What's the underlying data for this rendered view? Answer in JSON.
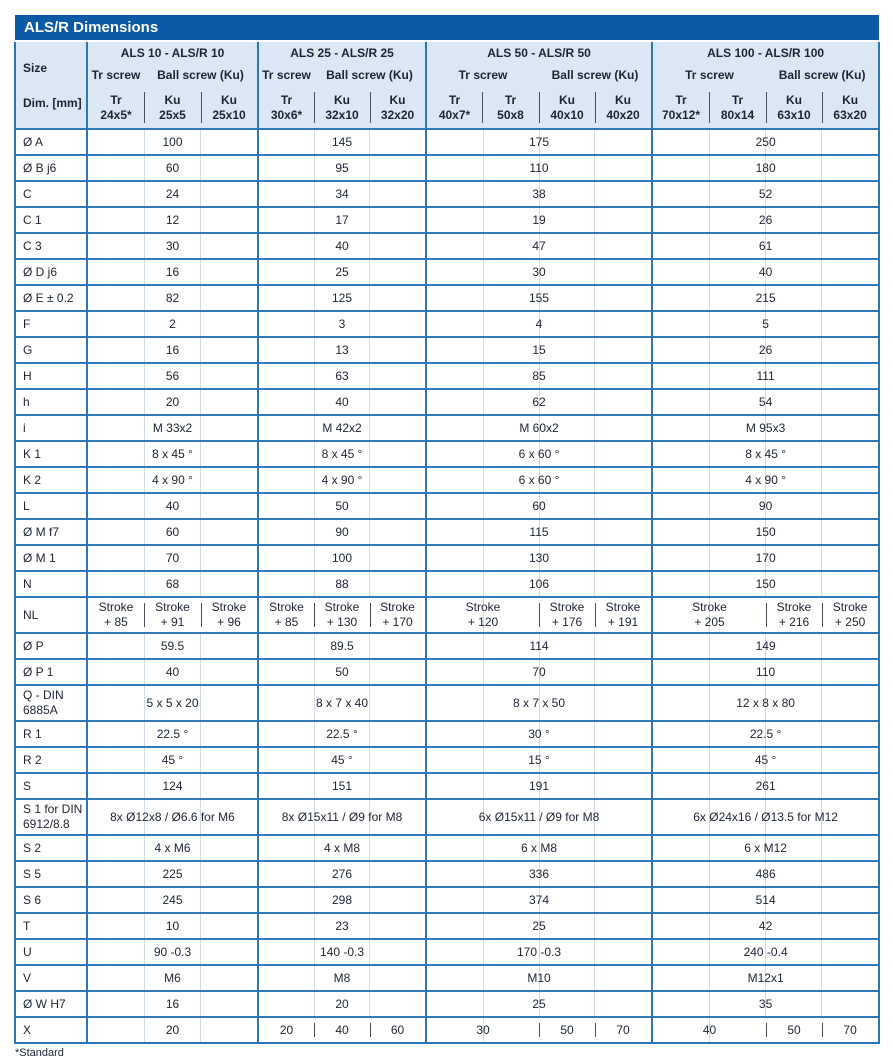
{
  "title": "ALS/R Dimensions",
  "footnote": "*Standard",
  "colors": {
    "title_bar": "#0a5aa5",
    "header_bg": "#dbe7f4",
    "grid_blue": "#2e75b5",
    "row_line": "#3279bd",
    "sub_separator": "#474d59",
    "span_line": "#cfdbe9",
    "text": "#1c2433"
  },
  "header": {
    "size_label": "Size",
    "dim_label": "Dim. [mm]",
    "groups": [
      {
        "name": "ALS 10 - ALS/R 10",
        "tr_label": "Tr screw",
        "ball_label": "Ball screw (Ku)",
        "tr_span": 1,
        "cols": [
          "Tr\n24x5*",
          "Ku\n25x5",
          "Ku\n25x10"
        ]
      },
      {
        "name": "ALS 25 - ALS/R 25",
        "tr_label": "Tr screw",
        "ball_label": "Ball screw (Ku)",
        "tr_span": 1,
        "cols": [
          "Tr\n30x6*",
          "Ku\n32x10",
          "Ku\n32x20"
        ]
      },
      {
        "name": "ALS 50 - ALS/R 50",
        "tr_label": "Tr screw",
        "ball_label": "Ball screw (Ku)",
        "tr_span": 2,
        "cols": [
          "Tr\n40x7*",
          "Tr\n50x8",
          "Ku\n40x10",
          "Ku\n40x20"
        ]
      },
      {
        "name": "ALS 100 - ALS/R 100",
        "tr_label": "Tr screw",
        "ball_label": "Ball screw (Ku)",
        "tr_span": 2,
        "cols": [
          "Tr\n70x12*",
          "Tr\n80x14",
          "Ku\n63x10",
          "Ku\n63x20"
        ]
      }
    ]
  },
  "rows": [
    {
      "label": "Ø A",
      "cells": [
        [
          "100",
          3
        ],
        [
          "145",
          3
        ],
        [
          "175",
          4
        ],
        [
          "250",
          4
        ]
      ]
    },
    {
      "label": "Ø B j6",
      "cells": [
        [
          "60",
          3
        ],
        [
          "95",
          3
        ],
        [
          "110",
          4
        ],
        [
          "180",
          4
        ]
      ]
    },
    {
      "label": "C",
      "cells": [
        [
          "24",
          3
        ],
        [
          "34",
          3
        ],
        [
          "38",
          4
        ],
        [
          "52",
          4
        ]
      ]
    },
    {
      "label": "C 1",
      "cells": [
        [
          "12",
          3
        ],
        [
          "17",
          3
        ],
        [
          "19",
          4
        ],
        [
          "26",
          4
        ]
      ]
    },
    {
      "label": "C 3",
      "cells": [
        [
          "30",
          3
        ],
        [
          "40",
          3
        ],
        [
          "47",
          4
        ],
        [
          "61",
          4
        ]
      ]
    },
    {
      "label": "Ø D j6",
      "cells": [
        [
          "16",
          3
        ],
        [
          "25",
          3
        ],
        [
          "30",
          4
        ],
        [
          "40",
          4
        ]
      ]
    },
    {
      "label": "Ø E ± 0.2",
      "cells": [
        [
          "82",
          3
        ],
        [
          "125",
          3
        ],
        [
          "155",
          4
        ],
        [
          "215",
          4
        ]
      ]
    },
    {
      "label": "F",
      "cells": [
        [
          "2",
          3
        ],
        [
          "3",
          3
        ],
        [
          "4",
          4
        ],
        [
          "5",
          4
        ]
      ]
    },
    {
      "label": "G",
      "cells": [
        [
          "16",
          3
        ],
        [
          "13",
          3
        ],
        [
          "15",
          4
        ],
        [
          "26",
          4
        ]
      ]
    },
    {
      "label": "H",
      "cells": [
        [
          "56",
          3
        ],
        [
          "63",
          3
        ],
        [
          "85",
          4
        ],
        [
          "111",
          4
        ]
      ]
    },
    {
      "label": "h",
      "cells": [
        [
          "20",
          3
        ],
        [
          "40",
          3
        ],
        [
          "62",
          4
        ],
        [
          "54",
          4
        ]
      ]
    },
    {
      "label": "i",
      "cells": [
        [
          "M 33x2",
          3
        ],
        [
          "M 42x2",
          3
        ],
        [
          "M 60x2",
          4
        ],
        [
          "M 95x3",
          4
        ]
      ]
    },
    {
      "label": "K 1",
      "cells": [
        [
          "8 x 45 °",
          3
        ],
        [
          "8 x 45 °",
          3
        ],
        [
          "6 x 60 °",
          4
        ],
        [
          "8 x 45 °",
          4
        ]
      ]
    },
    {
      "label": "K 2",
      "cells": [
        [
          "4 x 90 °",
          3
        ],
        [
          "4 x 90 °",
          3
        ],
        [
          "6 x 60 °",
          4
        ],
        [
          "4 x 90 °",
          4
        ]
      ]
    },
    {
      "label": "L",
      "cells": [
        [
          "40",
          3
        ],
        [
          "50",
          3
        ],
        [
          "60",
          4
        ],
        [
          "90",
          4
        ]
      ]
    },
    {
      "label": "Ø M f7",
      "cells": [
        [
          "60",
          3
        ],
        [
          "90",
          3
        ],
        [
          "115",
          4
        ],
        [
          "150",
          4
        ]
      ]
    },
    {
      "label": "Ø M 1",
      "cells": [
        [
          "70",
          3
        ],
        [
          "100",
          3
        ],
        [
          "130",
          4
        ],
        [
          "170",
          4
        ]
      ]
    },
    {
      "label": "N",
      "cells": [
        [
          "68",
          3
        ],
        [
          "88",
          3
        ],
        [
          "106",
          4
        ],
        [
          "150",
          4
        ]
      ]
    },
    {
      "label": "NL",
      "tall": true,
      "cells": [
        [
          "Stroke\n+ 85",
          1
        ],
        [
          "Stroke\n+ 91",
          1
        ],
        [
          "Stroke\n+ 96",
          1
        ],
        [
          "Stroke\n+ 85",
          1
        ],
        [
          "Stroke\n+ 130",
          1
        ],
        [
          "Stroke\n+ 170",
          1
        ],
        [
          "Stroke\n+ 120",
          2
        ],
        [
          "Stroke\n+ 176",
          1
        ],
        [
          "Stroke\n+ 191",
          1
        ],
        [
          "Stroke\n+ 205",
          2
        ],
        [
          "Stroke\n+ 216",
          1
        ],
        [
          "Stroke\n+ 250",
          1
        ]
      ]
    },
    {
      "label": "Ø P",
      "cells": [
        [
          "59.5",
          3
        ],
        [
          "89.5",
          3
        ],
        [
          "114",
          4
        ],
        [
          "149",
          4
        ]
      ]
    },
    {
      "label": "Ø P 1",
      "cells": [
        [
          "40",
          3
        ],
        [
          "50",
          3
        ],
        [
          "70",
          4
        ],
        [
          "110",
          4
        ]
      ]
    },
    {
      "label": "Q - DIN\n6885A",
      "tall": true,
      "cells": [
        [
          "5 x 5 x 20",
          3
        ],
        [
          "8 x 7 x 40",
          3
        ],
        [
          "8 x 7 x 50",
          4
        ],
        [
          "12 x 8 x 80",
          4
        ]
      ]
    },
    {
      "label": "R 1",
      "cells": [
        [
          "22.5 °",
          3
        ],
        [
          "22.5 °",
          3
        ],
        [
          "30 °",
          4
        ],
        [
          "22.5 °",
          4
        ]
      ]
    },
    {
      "label": "R 2",
      "cells": [
        [
          "45 °",
          3
        ],
        [
          "45 °",
          3
        ],
        [
          "15 °",
          4
        ],
        [
          "45 °",
          4
        ]
      ]
    },
    {
      "label": "S",
      "cells": [
        [
          "124",
          3
        ],
        [
          "151",
          3
        ],
        [
          "191",
          4
        ],
        [
          "261",
          4
        ]
      ]
    },
    {
      "label": "S 1 for DIN\n6912/8.8",
      "tall": true,
      "cells": [
        [
          "8x Ø12x8 / Ø6.6 for M6",
          3
        ],
        [
          "8x Ø15x11 / Ø9 for M8",
          3
        ],
        [
          "6x Ø15x11 / Ø9 for M8",
          4
        ],
        [
          "6x Ø24x16 / Ø13.5 for M12",
          4
        ]
      ]
    },
    {
      "label": "S 2",
      "cells": [
        [
          "4 x M6",
          3
        ],
        [
          "4 x M8",
          3
        ],
        [
          "6 x M8",
          4
        ],
        [
          "6 x M12",
          4
        ]
      ]
    },
    {
      "label": "S 5",
      "cells": [
        [
          "225",
          3
        ],
        [
          "276",
          3
        ],
        [
          "336",
          4
        ],
        [
          "486",
          4
        ]
      ]
    },
    {
      "label": "S 6",
      "cells": [
        [
          "245",
          3
        ],
        [
          "298",
          3
        ],
        [
          "374",
          4
        ],
        [
          "514",
          4
        ]
      ]
    },
    {
      "label": "T",
      "cells": [
        [
          "10",
          3
        ],
        [
          "23",
          3
        ],
        [
          "25",
          4
        ],
        [
          "42",
          4
        ]
      ]
    },
    {
      "label": "U",
      "cells": [
        [
          "90 -0.3",
          3
        ],
        [
          "140 -0.3",
          3
        ],
        [
          "170 -0.3",
          4
        ],
        [
          "240 -0.4",
          4
        ]
      ]
    },
    {
      "label": "V",
      "cells": [
        [
          "M6",
          3
        ],
        [
          "M8",
          3
        ],
        [
          "M10",
          4
        ],
        [
          "M12x1",
          4
        ]
      ]
    },
    {
      "label": "Ø W H7",
      "cells": [
        [
          "16",
          3
        ],
        [
          "20",
          3
        ],
        [
          "25",
          4
        ],
        [
          "35",
          4
        ]
      ]
    },
    {
      "label": "X",
      "cells": [
        [
          "20",
          3
        ],
        [
          "20",
          1
        ],
        [
          "40",
          1
        ],
        [
          "60",
          1
        ],
        [
          "30",
          2
        ],
        [
          "50",
          1
        ],
        [
          "70",
          1
        ],
        [
          "40",
          2
        ],
        [
          "50",
          1
        ],
        [
          "70",
          1
        ]
      ]
    }
  ]
}
